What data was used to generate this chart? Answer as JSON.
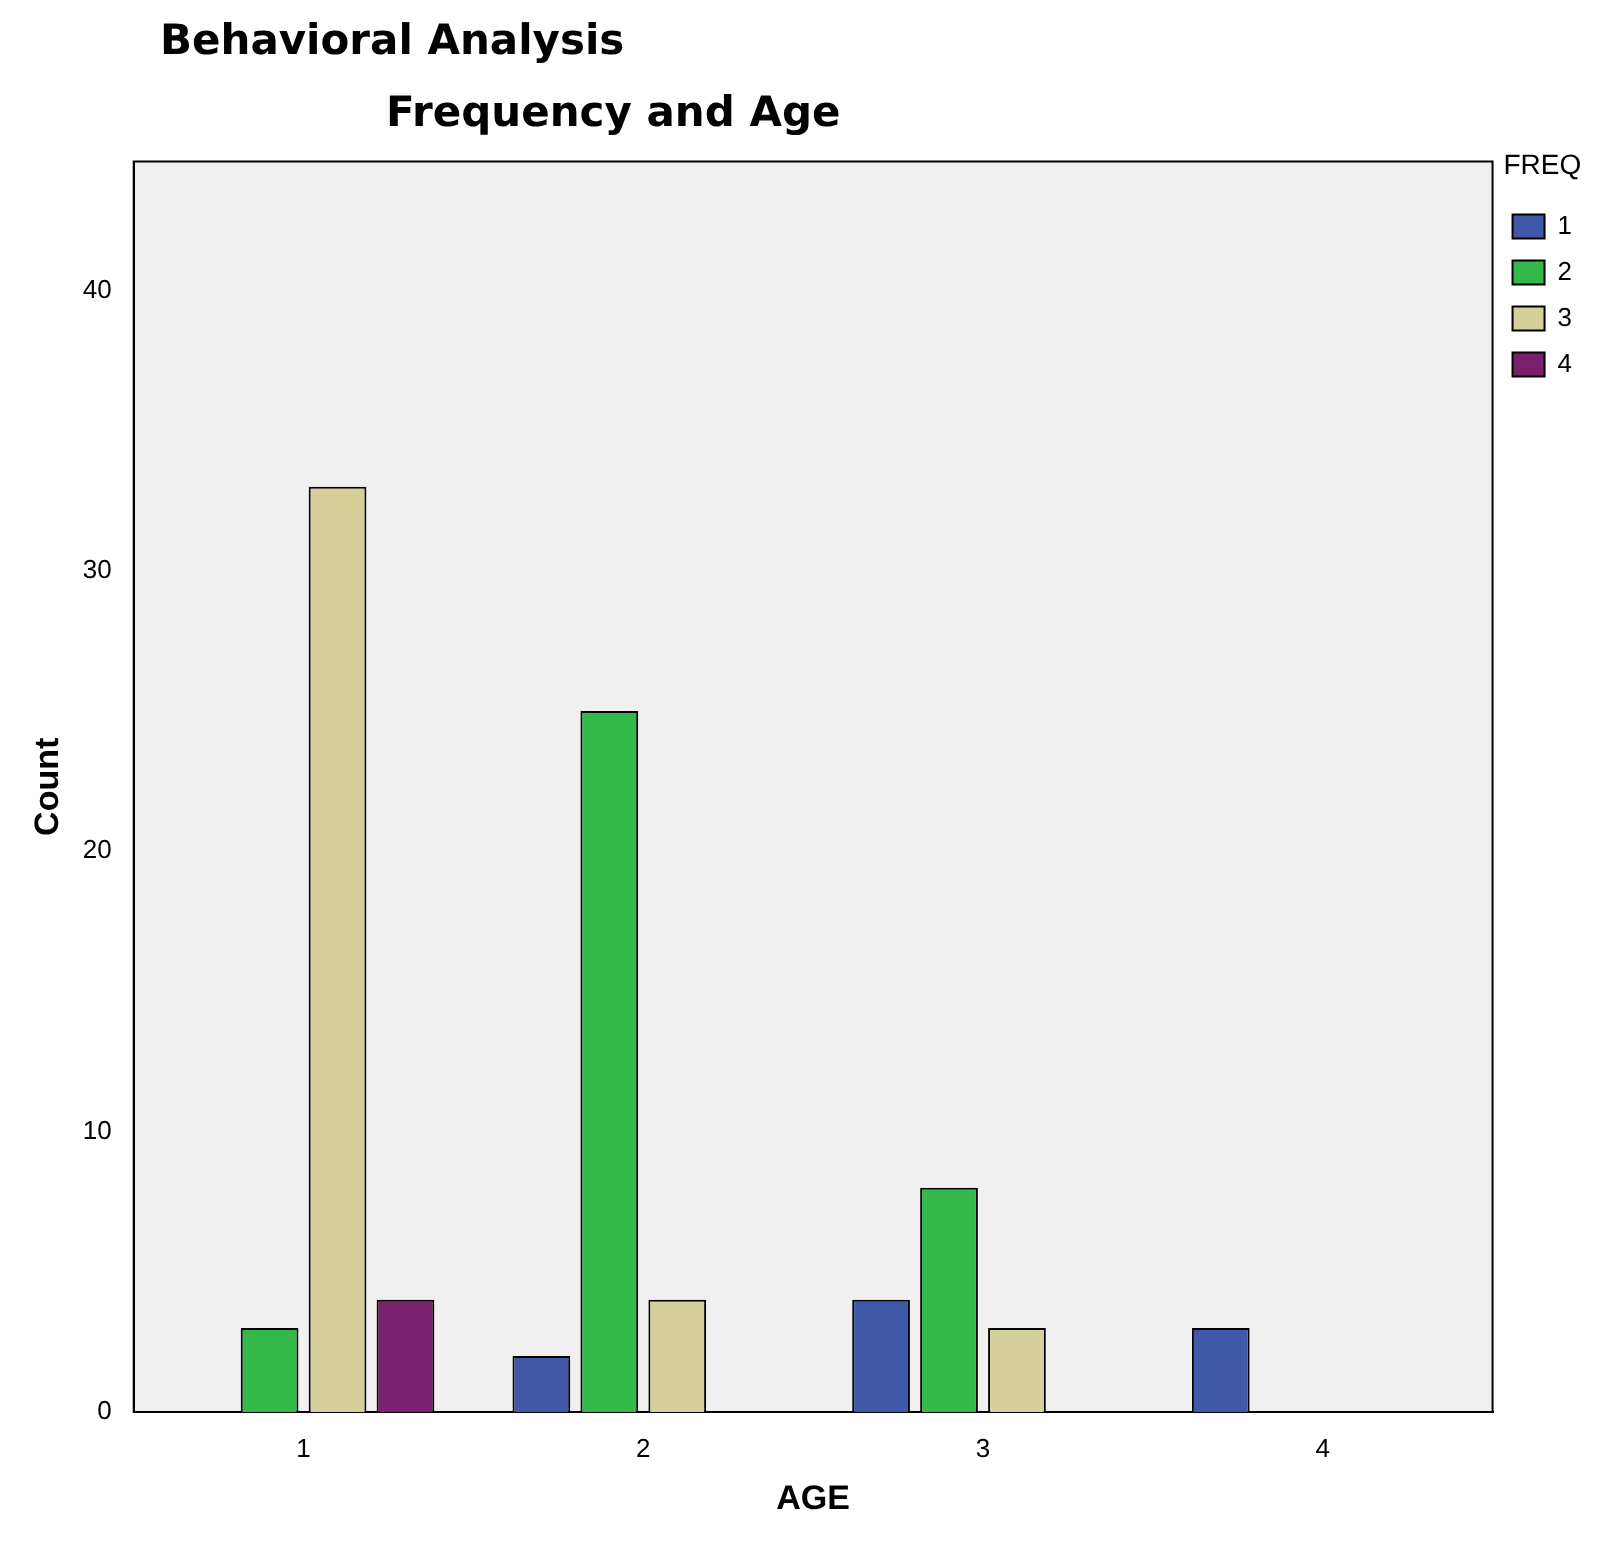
{
  "chart_data": {
    "type": "bar",
    "title": "Behavioral Analysis",
    "subtitle": "Frequency and Age",
    "xlabel": "AGE",
    "ylabel": "Count",
    "legend_title": "FREQ",
    "categories": [
      "1",
      "2",
      "3",
      "4"
    ],
    "series": [
      {
        "name": "1",
        "color": "#3f58a8",
        "values": [
          null,
          2,
          4,
          3
        ]
      },
      {
        "name": "2",
        "color": "#33b94a",
        "values": [
          3,
          25,
          8,
          null
        ]
      },
      {
        "name": "3",
        "color": "#d5cf9a",
        "values": [
          33,
          4,
          3,
          null
        ]
      },
      {
        "name": "4",
        "color": "#7b1f6e",
        "values": [
          4,
          null,
          null,
          null
        ]
      }
    ],
    "ylim": [
      0,
      44.6
    ],
    "yticks": [
      0,
      10,
      20,
      30,
      40
    ],
    "grid": false,
    "legend": "top right"
  }
}
